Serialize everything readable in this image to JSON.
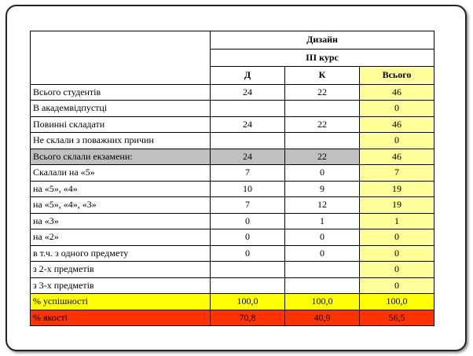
{
  "header": {
    "department": "Дизайн",
    "course": "ІІІ  курс",
    "columns": [
      "Д",
      "К",
      "Всього"
    ]
  },
  "rows": [
    {
      "label": "Всього студентів",
      "d": "24",
      "k": "22",
      "total": "46"
    },
    {
      "label": "В академвідпустці",
      "d": "",
      "k": "",
      "total": "0"
    },
    {
      "label": "Повинні складати",
      "d": "24",
      "k": "22",
      "total": "46"
    },
    {
      "label": "Не склали з поважних причин",
      "d": "",
      "k": "",
      "total": "0"
    },
    {
      "label": "Всього склали екзамени:",
      "d": "24",
      "k": "22",
      "total": "46"
    },
    {
      "label": "Скалали  на «5»",
      "d": "7",
      "k": "0",
      "total": "7"
    },
    {
      "label": "на «5», «4»",
      "d": "10",
      "k": "9",
      "total": "19"
    },
    {
      "label": "на «5», «4», «3»",
      "d": "7",
      "k": "12",
      "total": "19"
    },
    {
      "label": "на «3»",
      "d": "0",
      "k": "1",
      "total": "1"
    },
    {
      "label": "на «2»",
      "d": "0",
      "k": "0",
      "total": "0"
    },
    {
      "label": "в т.ч. з одного предмету",
      "d": "0",
      "k": "0",
      "total": "0"
    },
    {
      "label": "з 2-х  предметів",
      "d": "",
      "k": "",
      "total": "0"
    },
    {
      "label": "з 3-х  предметів",
      "d": "",
      "k": "",
      "total": "0"
    },
    {
      "label": "% успішності",
      "d": "100,0",
      "k": "100,0",
      "total": "100,0"
    },
    {
      "label": "% якості",
      "d": "70,8",
      "k": "40,9",
      "total": "56,5"
    }
  ],
  "colors": {
    "total_column": "#ffff99",
    "highlight_gray": "#c0c0c0",
    "success_row": "#ffff00",
    "quality_row": "#ff3300"
  }
}
